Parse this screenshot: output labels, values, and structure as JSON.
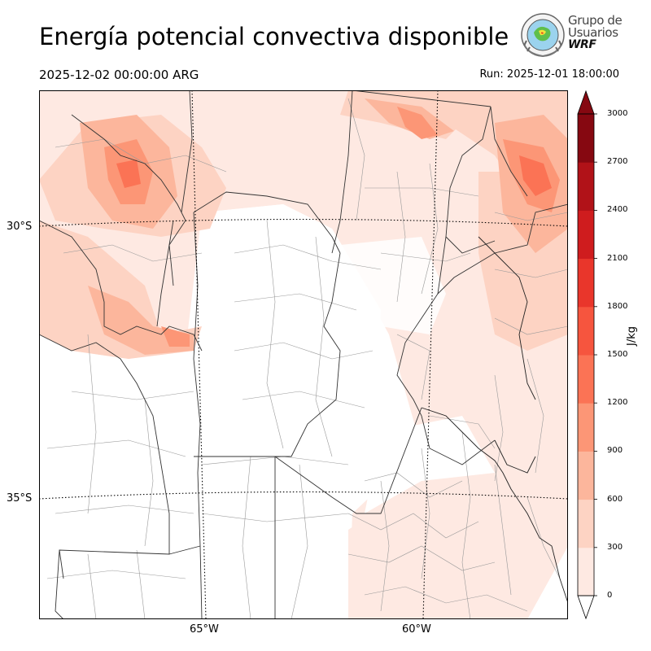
{
  "header": {
    "title": "Energía potencial convectiva disponible",
    "valid_time": "2025-12-02 00:00:00 ARG",
    "run_time": "Run: 2025-12-01 18:00:00"
  },
  "logo": {
    "line1": "Grupo de",
    "line2": "Usuarios",
    "line3": "WRF"
  },
  "map": {
    "latitudes": [
      {
        "label": "30°S",
        "value": -30
      },
      {
        "label": "35°S",
        "value": -35
      }
    ],
    "longitudes": [
      {
        "label": "65°W",
        "value": -65
      },
      {
        "label": "60°W",
        "value": -60
      }
    ]
  },
  "colorbar": {
    "unit": "J/kg",
    "ticks": [
      "0",
      "300",
      "600",
      "900",
      "1200",
      "1500",
      "1800",
      "2100",
      "2400",
      "2700",
      "3000"
    ],
    "colors": [
      "#fee9e2",
      "#fdd3c3",
      "#fcb69c",
      "#fc9676",
      "#fb7355",
      "#f6553e",
      "#e9362b",
      "#cf1c1e",
      "#b11218",
      "#860811"
    ]
  }
}
